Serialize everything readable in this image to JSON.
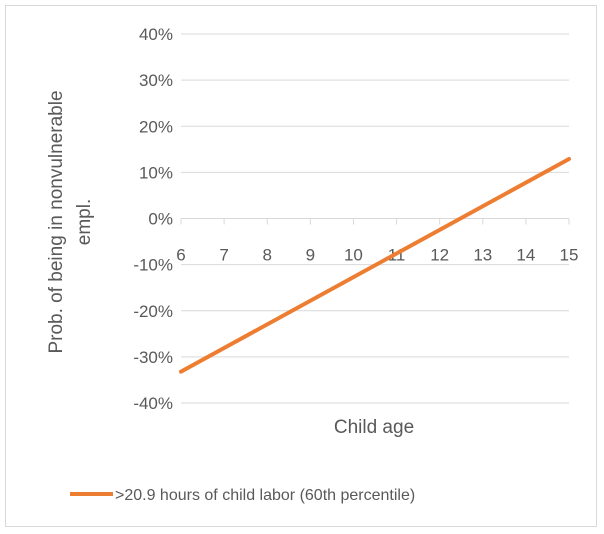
{
  "chart_data": {
    "type": "line",
    "title": "",
    "xlabel": "Child age",
    "ylabel_lines": [
      "Prob. of being in nonvulnerable",
      "empl."
    ],
    "x_ticks": [
      "6",
      "7",
      "8",
      "9",
      "10",
      "11",
      "12",
      "13",
      "14",
      "15"
    ],
    "y_ticks": [
      "40%",
      "30%",
      "20%",
      "10%",
      "0%",
      "-10%",
      "-20%",
      "-30%",
      "-40%"
    ],
    "xlim": [
      6,
      15
    ],
    "ylim": [
      -40,
      40
    ],
    "grid": true,
    "legend_position": "bottom",
    "series": [
      {
        "name": ">20.9 hours of child labor (60th percentile)",
        "color": "#ed7d31",
        "x": [
          6,
          15
        ],
        "y": [
          -33.2,
          12.9
        ]
      }
    ]
  },
  "colors": {
    "grid": "#d9d9d9",
    "text": "#595959"
  }
}
